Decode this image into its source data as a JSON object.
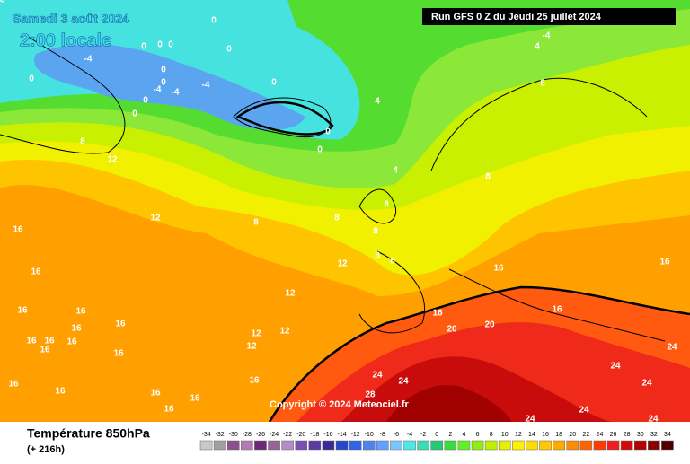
{
  "header": {
    "date": "Samedi 3 août 2024",
    "time": "2:00 locale",
    "run": "Run GFS 0 Z du Jeudi 25 juillet 2024"
  },
  "copyright": "Copyright © 2024 Meteociel.fr",
  "footer": {
    "title": "Température 850hPa",
    "lead": "(+ 216h)"
  },
  "scale": [
    -34,
    -32,
    -30,
    -28,
    -26,
    -24,
    -22,
    -20,
    -18,
    -16,
    -14,
    -12,
    -10,
    -8,
    -6,
    -4,
    -2,
    0,
    2,
    4,
    6,
    8,
    10,
    12,
    14,
    16,
    18,
    20,
    22,
    24,
    26,
    28,
    30,
    32,
    34
  ],
  "contour_labels": [
    0,
    0,
    0,
    0,
    0,
    0,
    0,
    0,
    0,
    0,
    0,
    0,
    0,
    -4,
    -4,
    -4,
    -4,
    -4,
    4,
    4,
    4,
    8,
    8,
    8,
    8,
    8,
    8,
    8,
    8,
    8,
    12,
    12,
    12,
    12,
    12,
    12,
    12,
    16,
    16,
    16,
    16,
    16,
    16,
    16,
    16,
    16,
    16,
    16,
    16,
    16,
    16,
    16,
    16,
    16,
    16,
    16,
    16,
    16,
    20,
    20,
    24,
    24,
    24,
    24,
    24,
    24,
    24,
    24,
    28,
    28
  ]
}
